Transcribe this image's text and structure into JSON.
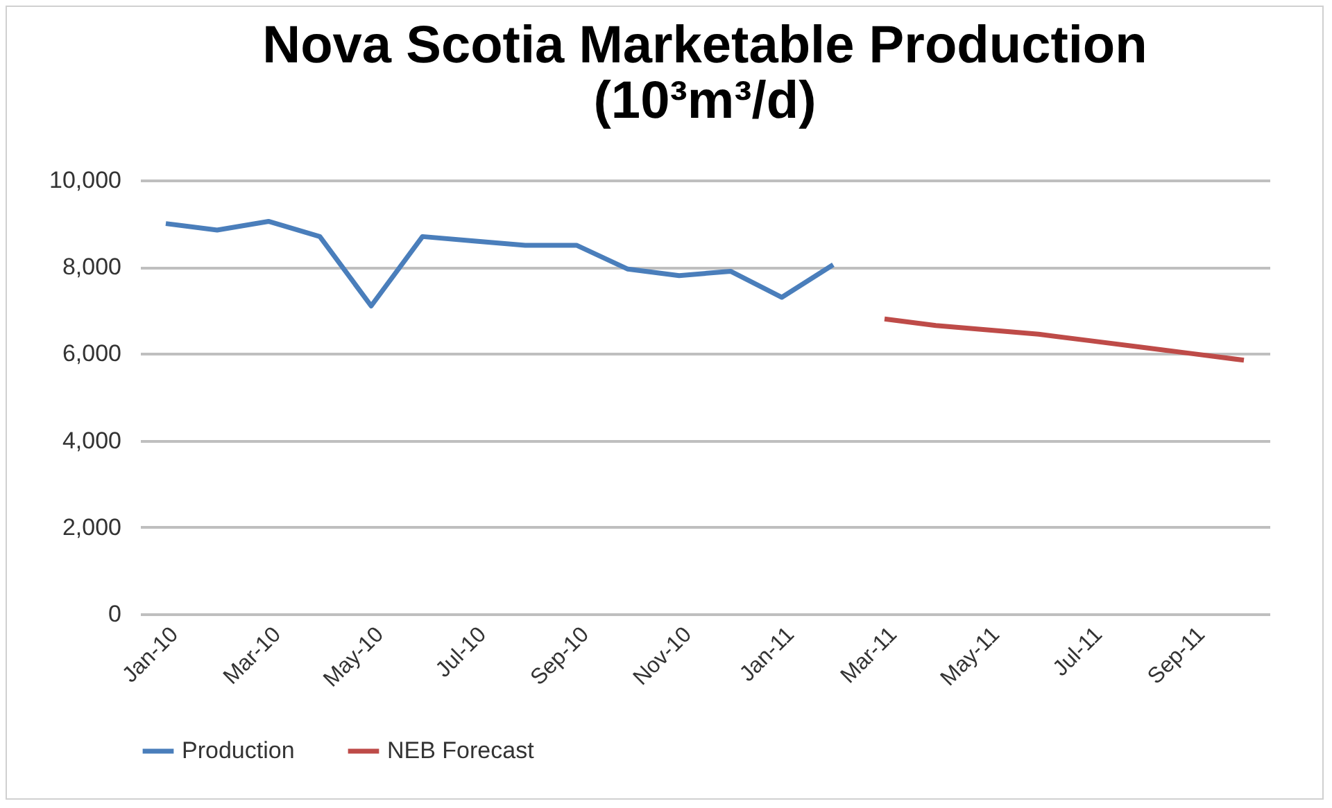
{
  "chart_data": {
    "type": "line",
    "title": "Nova Scotia Marketable Production (10³m³/d)",
    "categories": [
      "Jan-10",
      null,
      "Mar-10",
      null,
      "May-10",
      null,
      "Jul-10",
      null,
      "Sep-10",
      null,
      "Nov-10",
      null,
      "Jan-11",
      null,
      "Mar-11",
      null,
      "May-11",
      null,
      "Jul-11",
      null,
      "Sep-11",
      null
    ],
    "series": [
      {
        "name": "Production",
        "color": "#4a7ebb",
        "values": [
          9000,
          8850,
          9050,
          8700,
          7100,
          8700,
          8600,
          8500,
          8500,
          7950,
          7800,
          7900,
          7300,
          8050,
          null,
          null,
          null,
          null,
          null,
          null,
          null,
          null
        ]
      },
      {
        "name": "NEB Forecast",
        "color": "#be4b48",
        "values": [
          null,
          null,
          null,
          null,
          null,
          null,
          null,
          null,
          null,
          null,
          null,
          null,
          null,
          null,
          6800,
          6650,
          6550,
          6450,
          6300,
          6150,
          6000,
          5850
        ]
      }
    ],
    "ylim": [
      0,
      10000
    ],
    "yticks": [
      {
        "value": 0,
        "label": "0"
      },
      {
        "value": 2000,
        "label": "2,000"
      },
      {
        "value": 4000,
        "label": "4,000"
      },
      {
        "value": 6000,
        "label": "6,000"
      },
      {
        "value": 8000,
        "label": "8,000"
      },
      {
        "value": 10000,
        "label": "10,000"
      }
    ],
    "grid": "y",
    "legend": "bottom",
    "marker": "none",
    "line_style": "solid"
  }
}
